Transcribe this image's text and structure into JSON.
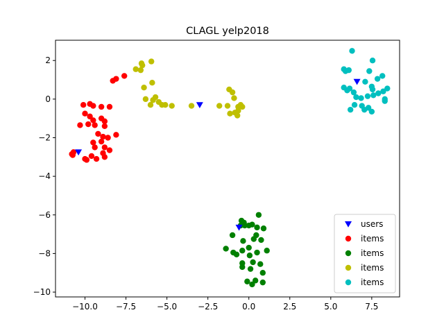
{
  "chart_data": {
    "type": "scatter",
    "title": "CLAGL yelp2018",
    "xlabel": "",
    "ylabel": "",
    "xlim": [
      -11.8,
      9.2
    ],
    "ylim": [
      -10.25,
      3.05
    ],
    "x_ticks": [
      -10,
      -7.5,
      -5,
      -2.5,
      0,
      2.5,
      5,
      7.5
    ],
    "x_tick_labels": [
      "−10.0",
      "−7.5",
      "−5.0",
      "−2.5",
      "0.0",
      "2.5",
      "5.0",
      "7.5"
    ],
    "y_ticks": [
      -10,
      -8,
      -6,
      -4,
      -2,
      0,
      2
    ],
    "y_tick_labels": [
      "−10",
      "−8",
      "−6",
      "−4",
      "−2",
      "0",
      "2"
    ],
    "grid": false,
    "legend_position": "lower-right",
    "series": [
      {
        "name": "users",
        "marker": "triangle-down",
        "color": "#0000ff",
        "points": [
          [
            -10.4,
            -2.75
          ],
          [
            -3.0,
            -0.3
          ],
          [
            -0.6,
            -6.65
          ],
          [
            6.6,
            0.9
          ]
        ]
      },
      {
        "name": "items",
        "marker": "circle",
        "color": "#ff0000",
        "points": [
          [
            -7.6,
            1.2
          ],
          [
            -8.1,
            1.05
          ],
          [
            -8.3,
            0.95
          ],
          [
            -10.1,
            -0.3
          ],
          [
            -9.7,
            -0.25
          ],
          [
            -9.5,
            -0.35
          ],
          [
            -9.0,
            -0.4
          ],
          [
            -8.5,
            -0.4
          ],
          [
            -10.0,
            -0.75
          ],
          [
            -9.7,
            -0.9
          ],
          [
            -9.5,
            -1.1
          ],
          [
            -9.0,
            -1.0
          ],
          [
            -8.8,
            -1.15
          ],
          [
            -10.3,
            -1.35
          ],
          [
            -9.8,
            -1.3
          ],
          [
            -9.4,
            -1.35
          ],
          [
            -8.8,
            -1.4
          ],
          [
            -9.2,
            -1.8
          ],
          [
            -8.9,
            -1.95
          ],
          [
            -8.6,
            -2.0
          ],
          [
            -8.1,
            -1.85
          ],
          [
            -9.5,
            -2.25
          ],
          [
            -9.0,
            -2.2
          ],
          [
            -9.4,
            -2.5
          ],
          [
            -8.8,
            -2.5
          ],
          [
            -8.5,
            -2.65
          ],
          [
            -8.9,
            -2.8
          ],
          [
            -9.6,
            -2.95
          ],
          [
            -8.8,
            -3.0
          ],
          [
            -10.0,
            -3.1
          ],
          [
            -9.9,
            -3.15
          ],
          [
            -9.3,
            -3.1
          ],
          [
            -10.7,
            -2.75
          ],
          [
            -10.8,
            -2.85
          ],
          [
            -10.75,
            -2.9
          ]
        ]
      },
      {
        "name": "items",
        "marker": "circle",
        "color": "#008000",
        "points": [
          [
            0.6,
            -6.0
          ],
          [
            -0.45,
            -6.3
          ],
          [
            -0.25,
            -6.55
          ],
          [
            0.0,
            -6.55
          ],
          [
            0.2,
            -6.5
          ],
          [
            0.5,
            -6.65
          ],
          [
            0.9,
            -6.7
          ],
          [
            -0.5,
            -6.55
          ],
          [
            -0.3,
            -6.4
          ],
          [
            -1.0,
            -7.05
          ],
          [
            0.45,
            -7.05
          ],
          [
            -0.35,
            -7.35
          ],
          [
            0.3,
            -7.25
          ],
          [
            0.75,
            -7.3
          ],
          [
            -1.4,
            -7.75
          ],
          [
            -0.4,
            -7.85
          ],
          [
            0.0,
            -7.7
          ],
          [
            1.1,
            -7.85
          ],
          [
            -0.95,
            -7.95
          ],
          [
            -0.75,
            -8.05
          ],
          [
            0.5,
            -7.95
          ],
          [
            0.05,
            -8.1
          ],
          [
            -0.4,
            -8.5
          ],
          [
            0.25,
            -8.45
          ],
          [
            0.7,
            -8.55
          ],
          [
            -0.4,
            -8.7
          ],
          [
            0.1,
            -8.8
          ],
          [
            0.85,
            -9.0
          ],
          [
            -0.1,
            -9.45
          ],
          [
            0.2,
            -9.6
          ],
          [
            0.4,
            -9.4
          ],
          [
            0.85,
            -9.5
          ]
        ]
      },
      {
        "name": "items",
        "marker": "circle",
        "color": "#bfbf00",
        "points": [
          [
            -6.55,
            1.85
          ],
          [
            -5.95,
            1.95
          ],
          [
            -6.5,
            1.75
          ],
          [
            -6.9,
            1.55
          ],
          [
            -6.6,
            1.5
          ],
          [
            -5.9,
            0.85
          ],
          [
            -6.4,
            0.6
          ],
          [
            -5.7,
            0.1
          ],
          [
            -6.3,
            0.0
          ],
          [
            -5.85,
            -0.05
          ],
          [
            -5.5,
            -0.15
          ],
          [
            -6.0,
            -0.3
          ],
          [
            -5.3,
            -0.3
          ],
          [
            -5.1,
            -0.3
          ],
          [
            -4.7,
            -0.35
          ],
          [
            -3.5,
            -0.35
          ],
          [
            -1.2,
            0.5
          ],
          [
            -1.0,
            0.35
          ],
          [
            -0.9,
            0.05
          ],
          [
            -0.5,
            -0.3
          ],
          [
            -0.65,
            -0.4
          ],
          [
            -0.4,
            -0.4
          ],
          [
            -1.8,
            -0.35
          ],
          [
            -1.3,
            -0.35
          ],
          [
            -1.15,
            -0.75
          ],
          [
            -0.85,
            -0.7
          ],
          [
            -0.7,
            -0.85
          ],
          [
            -0.65,
            -0.6
          ]
        ]
      },
      {
        "name": "items",
        "marker": "circle",
        "color": "#00bfbf",
        "points": [
          [
            6.3,
            2.5
          ],
          [
            7.55,
            2.0
          ],
          [
            5.8,
            1.55
          ],
          [
            6.1,
            1.5
          ],
          [
            5.9,
            1.45
          ],
          [
            7.35,
            1.45
          ],
          [
            8.15,
            1.2
          ],
          [
            7.1,
            0.9
          ],
          [
            7.85,
            1.05
          ],
          [
            7.5,
            0.65
          ],
          [
            5.8,
            0.6
          ],
          [
            6.15,
            0.55
          ],
          [
            6.0,
            0.45
          ],
          [
            6.4,
            0.35
          ],
          [
            7.55,
            0.5
          ],
          [
            8.45,
            0.55
          ],
          [
            8.2,
            0.4
          ],
          [
            7.9,
            0.3
          ],
          [
            6.55,
            0.1
          ],
          [
            7.25,
            0.15
          ],
          [
            7.6,
            0.2
          ],
          [
            6.85,
            0.05
          ],
          [
            8.3,
            0.0
          ],
          [
            8.3,
            -0.1
          ],
          [
            6.45,
            -0.3
          ],
          [
            6.9,
            -0.35
          ],
          [
            7.3,
            -0.45
          ],
          [
            7.05,
            -0.55
          ],
          [
            6.2,
            -0.55
          ],
          [
            7.5,
            -0.65
          ]
        ]
      }
    ]
  }
}
